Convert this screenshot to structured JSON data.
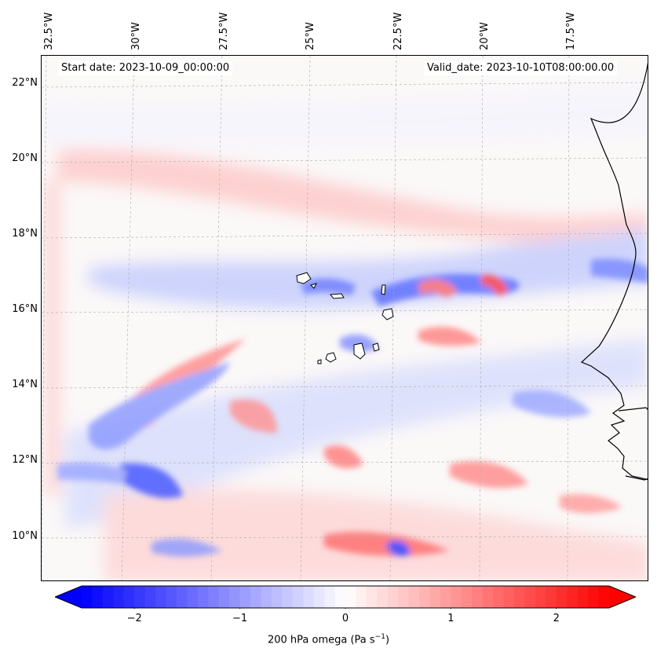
{
  "map": {
    "start_date": "Start date: 2023-10-09_00:00:00",
    "valid_date": "Valid_date: 2023-10-10T08:00:00.00",
    "longitude_labels": [
      "32.5°W",
      "30°W",
      "27.5°W",
      "25°W",
      "22.5°W",
      "20°W",
      "17.5°W"
    ],
    "latitude_labels": [
      "22°N",
      "20°N",
      "18°N",
      "16°N",
      "14°N",
      "12°N",
      "10°N"
    ],
    "field": "200 hPa omega",
    "extent": {
      "lon_min": -33.0,
      "lon_max": -15.5,
      "lat_min": 9.0,
      "lat_max": 22.6
    }
  },
  "colorbar": {
    "label_main": "200 hPa omega (Pa s",
    "label_exp": "−1",
    "label_end": ")",
    "ticks": [
      "−2",
      "−1",
      "0",
      "1",
      "2"
    ],
    "tick_values": [
      -2,
      -1,
      0,
      1,
      2
    ],
    "vmin": -2.5,
    "vmax": 2.5,
    "colors": {
      "low": "#0000ff",
      "mid": "#ffffff",
      "high": "#ff0000"
    }
  }
}
